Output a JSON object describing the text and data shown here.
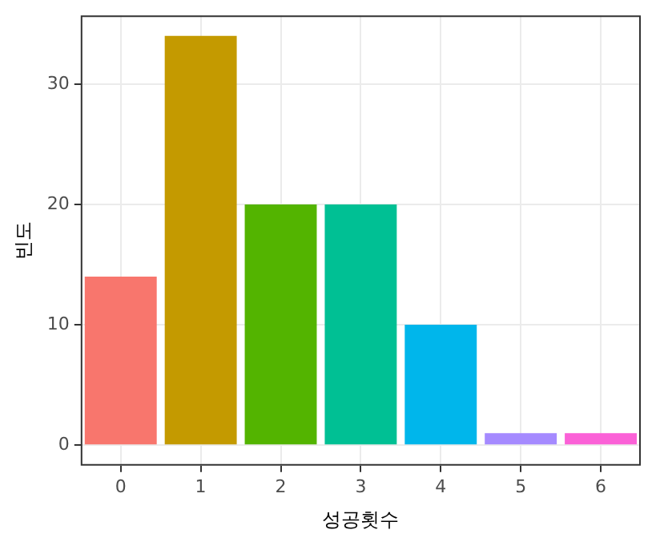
{
  "chart_data": {
    "type": "bar",
    "xlabel": "성공횟수",
    "ylabel": "빈도",
    "categories": [
      "0",
      "1",
      "2",
      "3",
      "4",
      "5",
      "6"
    ],
    "values": [
      14,
      34,
      20,
      20,
      10,
      1,
      1
    ],
    "colors": [
      "#f8766d",
      "#c49a00",
      "#53b400",
      "#00c094",
      "#00b6eb",
      "#a58aff",
      "#fb61d7"
    ],
    "ylim": [
      -1.7,
      35.7
    ],
    "yticks": [
      0,
      10,
      20,
      30
    ],
    "grid": true,
    "legend": false
  }
}
